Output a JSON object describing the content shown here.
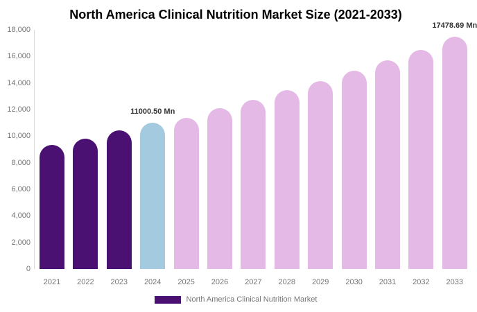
{
  "title": "North America Clinical Nutrition Market Size (2021-2033)",
  "legend": {
    "label": "North America Clinical Nutrition Market"
  },
  "colors": {
    "historical_bar": "#4A1173",
    "highlight_bar": "#A4CADF",
    "forecast_bar": "#E5B9E5",
    "axis_line": "#D9D9D9",
    "tick_text": "#757575",
    "title_text": "#000000",
    "annotation_text": "#333333",
    "background": "#FFFFFF"
  },
  "chart_data": {
    "type": "bar",
    "title": "North America Clinical Nutrition Market Size (2021-2033)",
    "unit": "Mn",
    "categories": [
      "2021",
      "2022",
      "2023",
      "2024",
      "2025",
      "2026",
      "2027",
      "2028",
      "2029",
      "2030",
      "2031",
      "2032",
      "2033"
    ],
    "values": [
      9350,
      9830,
      10430,
      11000.5,
      11400,
      12100,
      12730,
      13440,
      14140,
      14920,
      15700,
      16490,
      17478.69
    ],
    "bar_colors": [
      "#4A1173",
      "#4A1173",
      "#4A1173",
      "#A4CADF",
      "#E5B9E5",
      "#E5B9E5",
      "#E5B9E5",
      "#E5B9E5",
      "#E5B9E5",
      "#E5B9E5",
      "#E5B9E5",
      "#E5B9E5",
      "#E5B9E5"
    ],
    "ylim": [
      0,
      18000
    ],
    "ytick_step": 2000,
    "ytick_labels": [
      "0",
      "2,000",
      "4,000",
      "6,000",
      "8,000",
      "10,000",
      "12,000",
      "14,000",
      "16,000",
      "18,000"
    ],
    "xlabel": "",
    "ylabel": "",
    "grid": false,
    "legend_position": "bottom",
    "legend_entries": [
      "North America Clinical Nutrition Market"
    ],
    "annotations": [
      {
        "category": "2024",
        "text": "11000.50 Mn"
      },
      {
        "category": "2033",
        "text": "17478.69 Mn"
      }
    ]
  }
}
